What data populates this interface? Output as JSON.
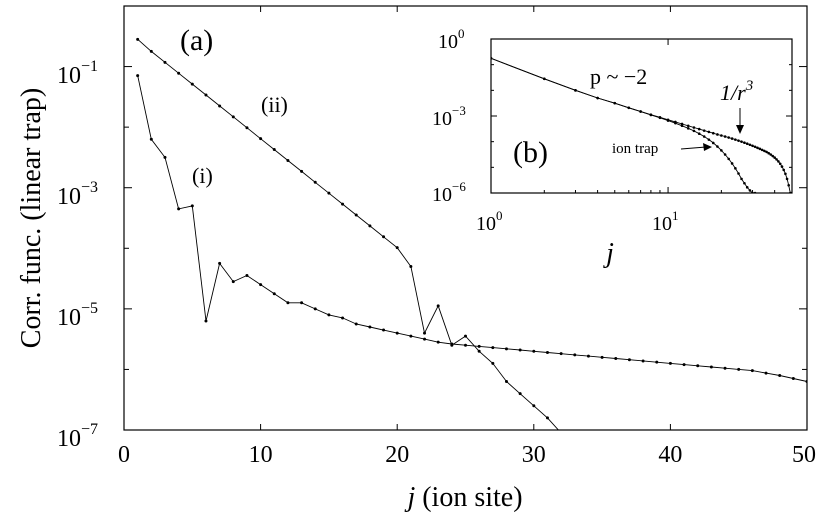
{
  "chart_data": [
    {
      "panel": "(a)",
      "type": "line",
      "xlabel": "j (ion site)",
      "ylabel": "Corr. func. (linear trap)",
      "xlim": [
        0,
        50
      ],
      "ylim_log10": [
        -7,
        0
      ],
      "x_ticks": [
        "0",
        "10",
        "20",
        "30",
        "40",
        "50"
      ],
      "y_ticks": [
        "10^-1",
        "10^-3",
        "10^-5",
        "10^-7"
      ],
      "grid": false,
      "series": [
        {
          "name": "(i)",
          "x": [
            1,
            2,
            3,
            4,
            5,
            6,
            7,
            8,
            9,
            10,
            11,
            12,
            13,
            14,
            15,
            16,
            17,
            18,
            19,
            20,
            21,
            22,
            23,
            24,
            25,
            26,
            27,
            28,
            29,
            30,
            31,
            32,
            33,
            34,
            35,
            36,
            37,
            38,
            39,
            40,
            41,
            42,
            43,
            44,
            45,
            46,
            47,
            48,
            49,
            50
          ],
          "log10_y": [
            -1.15,
            -2.2,
            -2.5,
            -3.35,
            -3.3,
            -5.2,
            -4.25,
            -4.55,
            -4.45,
            -4.6,
            -4.75,
            -4.9,
            -4.9,
            -5.0,
            -5.1,
            -5.15,
            -5.25,
            -5.3,
            -5.35,
            -5.4,
            -5.45,
            -5.5,
            -5.55,
            -5.58,
            -5.6,
            -5.62,
            -5.64,
            -5.66,
            -5.68,
            -5.7,
            -5.72,
            -5.74,
            -5.76,
            -5.78,
            -5.8,
            -5.82,
            -5.84,
            -5.86,
            -5.88,
            -5.9,
            -5.92,
            -5.94,
            -5.96,
            -5.98,
            -6.0,
            -6.02,
            -6.06,
            -6.1,
            -6.15,
            -6.2
          ]
        },
        {
          "name": "(ii)",
          "x": [
            1,
            2,
            3,
            4,
            5,
            6,
            7,
            8,
            9,
            10,
            11,
            12,
            13,
            14,
            15,
            16,
            17,
            18,
            19,
            20,
            21,
            22,
            23,
            24,
            25,
            26,
            27,
            28,
            29,
            30,
            31,
            32
          ],
          "log10_y": [
            -0.55,
            -0.75,
            -0.93,
            -1.11,
            -1.29,
            -1.47,
            -1.65,
            -1.83,
            -2.01,
            -2.19,
            -2.37,
            -2.55,
            -2.73,
            -2.91,
            -3.09,
            -3.27,
            -3.45,
            -3.63,
            -3.81,
            -3.99,
            -4.3,
            -5.4,
            -4.95,
            -5.6,
            -5.45,
            -5.7,
            -5.9,
            -6.2,
            -6.4,
            -6.6,
            -6.8,
            -7.05
          ]
        }
      ],
      "annotations": [
        "(a)",
        "(i)",
        "(ii)"
      ]
    },
    {
      "panel": "(b)",
      "type": "line",
      "scale": "log-log",
      "xlabel": "j",
      "xlim_log10": [
        0,
        1.7
      ],
      "ylim_log10": [
        -6,
        0
      ],
      "x_ticks": [
        "10^0",
        "10^1"
      ],
      "y_ticks": [
        "10^0",
        "10^-3",
        "10^-6"
      ],
      "series": [
        {
          "name": "1/r^3",
          "x": [
            1,
            2,
            3,
            4,
            5,
            6,
            7,
            8,
            9,
            10,
            11,
            12,
            13,
            14,
            15,
            16,
            17,
            18,
            19,
            20,
            21,
            22,
            23,
            24,
            25,
            26,
            27,
            28,
            29,
            30,
            31,
            32,
            33,
            34,
            35,
            36,
            37,
            38,
            39,
            40,
            41,
            42,
            43,
            44,
            45,
            46,
            47,
            48,
            49,
            50
          ],
          "log10_y": [
            -0.75,
            -1.55,
            -2.0,
            -2.3,
            -2.5,
            -2.68,
            -2.82,
            -2.95,
            -3.05,
            -3.15,
            -3.23,
            -3.31,
            -3.38,
            -3.45,
            -3.51,
            -3.57,
            -3.62,
            -3.67,
            -3.72,
            -3.76,
            -3.8,
            -3.84,
            -3.88,
            -3.92,
            -3.96,
            -4.0,
            -4.04,
            -4.08,
            -4.12,
            -4.16,
            -4.2,
            -4.24,
            -4.28,
            -4.32,
            -4.36,
            -4.4,
            -4.45,
            -4.5,
            -4.56,
            -4.62,
            -4.69,
            -4.77,
            -4.86,
            -4.97,
            -5.1,
            -5.25,
            -5.45,
            -5.7,
            -6.0,
            -6.0
          ]
        },
        {
          "name": "ion trap",
          "x": [
            1,
            2,
            3,
            4,
            5,
            6,
            7,
            8,
            9,
            10,
            11,
            12,
            13,
            14,
            15,
            16,
            17,
            18,
            19,
            20,
            21,
            22,
            23,
            24,
            25,
            26,
            27,
            28,
            29,
            30,
            31
          ],
          "log10_y": [
            -0.75,
            -1.55,
            -2.0,
            -2.3,
            -2.5,
            -2.68,
            -2.83,
            -2.96,
            -3.07,
            -3.18,
            -3.28,
            -3.38,
            -3.48,
            -3.58,
            -3.69,
            -3.8,
            -3.92,
            -4.05,
            -4.19,
            -4.34,
            -4.5,
            -4.67,
            -4.85,
            -5.04,
            -5.24,
            -5.45,
            -5.62,
            -5.78,
            -5.9,
            -6.0,
            -6.0
          ]
        }
      ],
      "annotations": [
        "(b)",
        "p ~ −2",
        "1/r",
        "3",
        "ion trap"
      ]
    }
  ]
}
